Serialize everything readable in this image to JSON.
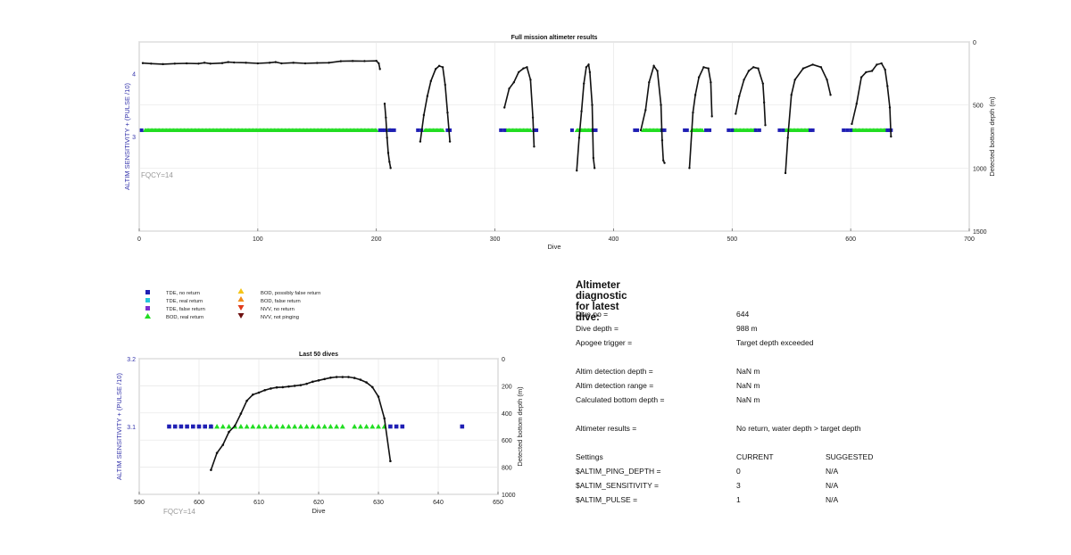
{
  "colors": {
    "tde_no_return": "#1f1fb4",
    "tde_real_return": "#26c6da",
    "tde_false_return": "#7b2fd1",
    "bod_real_return": "#22dd22",
    "bod_possibly_false": "#f5c518",
    "bod_false_return": "#f08c1a",
    "nvv_no_return": "#e03a1a",
    "nvv_not_pinging": "#6e1010",
    "depth_line": "#111111",
    "left_axis_label": "#3333aa",
    "fqcy_text": "#999999"
  },
  "chart_data": [
    {
      "type": "scatter",
      "title": "Full mission altimeter results",
      "xlabel": "Dive",
      "ylabel_left": "ALTIM SENSITIVITY + (PULSE /10)",
      "ylabel_right": "Detected bottom depth (m)",
      "xlim": [
        0,
        700
      ],
      "ylim_left": [
        1.5,
        4.5
      ],
      "ylim_right": [
        1500,
        0
      ],
      "x_ticks": [
        "0",
        "100",
        "200",
        "300",
        "400",
        "500",
        "600",
        "700"
      ],
      "y_left_ticks": [
        "4",
        "3"
      ],
      "y_right_ticks": [
        "0",
        "500",
        "1000",
        "1500"
      ],
      "grid": true,
      "annotation": "FQCY=14",
      "depth_segments": [
        [
          [
            3,
            168
          ],
          [
            10,
            172
          ],
          [
            20,
            176
          ],
          [
            30,
            172
          ],
          [
            40,
            170
          ],
          [
            50,
            172
          ],
          [
            55,
            165
          ],
          [
            60,
            172
          ],
          [
            70,
            168
          ],
          [
            75,
            160
          ],
          [
            80,
            163
          ],
          [
            90,
            165
          ],
          [
            100,
            170
          ],
          [
            110,
            165
          ],
          [
            115,
            160
          ],
          [
            120,
            170
          ],
          [
            130,
            165
          ],
          [
            140,
            170
          ],
          [
            150,
            167
          ],
          [
            160,
            165
          ],
          [
            170,
            153
          ],
          [
            180,
            151
          ],
          [
            190,
            152
          ],
          [
            200,
            150
          ],
          [
            202,
            170
          ],
          [
            203,
            215
          ]
        ],
        [
          [
            207,
            490
          ],
          [
            208,
            600
          ],
          [
            209,
            760
          ],
          [
            210,
            880
          ],
          [
            211,
            950
          ],
          [
            212,
            1000
          ]
        ],
        [
          [
            237,
            790
          ],
          [
            240,
            580
          ],
          [
            243,
            430
          ],
          [
            246,
            310
          ],
          [
            250,
            215
          ],
          [
            253,
            190
          ],
          [
            256,
            200
          ],
          [
            258,
            340
          ],
          [
            260,
            560
          ],
          [
            262,
            790
          ]
        ],
        [
          [
            308,
            520
          ],
          [
            312,
            370
          ],
          [
            316,
            320
          ],
          [
            320,
            240
          ],
          [
            324,
            210
          ],
          [
            327,
            200
          ],
          [
            330,
            300
          ],
          [
            332,
            600
          ],
          [
            333,
            830
          ]
        ],
        [
          [
            369,
            1020
          ],
          [
            371,
            760
          ],
          [
            373,
            550
          ],
          [
            375,
            330
          ],
          [
            377,
            200
          ],
          [
            379,
            180
          ],
          [
            380,
            240
          ],
          [
            382,
            500
          ],
          [
            383,
            920
          ],
          [
            384,
            1000
          ]
        ],
        [
          [
            423,
            700
          ],
          [
            427,
            540
          ],
          [
            430,
            320
          ],
          [
            434,
            190
          ],
          [
            437,
            230
          ],
          [
            440,
            500
          ],
          [
            441,
            780
          ],
          [
            442,
            940
          ],
          [
            443,
            960
          ]
        ],
        [
          [
            464,
            1000
          ],
          [
            467,
            560
          ],
          [
            469,
            420
          ],
          [
            472,
            280
          ],
          [
            476,
            200
          ],
          [
            480,
            210
          ],
          [
            482,
            320
          ],
          [
            483,
            590
          ]
        ],
        [
          [
            503,
            570
          ],
          [
            506,
            430
          ],
          [
            510,
            300
          ],
          [
            514,
            230
          ],
          [
            518,
            200
          ],
          [
            522,
            210
          ],
          [
            526,
            330
          ],
          [
            527,
            480
          ],
          [
            528,
            660
          ]
        ],
        [
          [
            545,
            1040
          ],
          [
            547,
            760
          ],
          [
            550,
            420
          ],
          [
            553,
            300
          ],
          [
            560,
            210
          ],
          [
            568,
            180
          ],
          [
            575,
            200
          ],
          [
            580,
            300
          ],
          [
            583,
            420
          ]
        ],
        [
          [
            601,
            650
          ],
          [
            605,
            490
          ],
          [
            609,
            280
          ],
          [
            613,
            240
          ],
          [
            618,
            230
          ],
          [
            622,
            180
          ],
          [
            626,
            170
          ],
          [
            629,
            220
          ],
          [
            631,
            350
          ],
          [
            633,
            520
          ],
          [
            634,
            750
          ]
        ]
      ],
      "bod_real_return_ranges": [
        [
          5,
          200
        ],
        [
          210,
          212
        ],
        [
          241,
          256
        ],
        [
          310,
          330
        ],
        [
          369,
          382
        ],
        [
          425,
          440
        ],
        [
          466,
          475
        ],
        [
          500,
          520
        ],
        [
          545,
          565
        ],
        [
          601,
          630
        ]
      ],
      "tde_no_return_points": [
        2,
        203,
        205,
        207,
        211,
        213,
        215,
        235,
        238,
        260,
        262,
        305,
        308,
        333,
        335,
        365,
        383,
        385,
        418,
        420,
        441,
        443,
        460,
        462,
        478,
        481,
        497,
        500,
        520,
        523,
        540,
        543,
        566,
        568,
        594,
        597,
        600,
        631,
        633,
        634
      ]
    },
    {
      "type": "scatter",
      "title": "Last 50 dives",
      "xlabel": "Dive",
      "ylabel_left": "ALTIM SENSITIVITY + (PULSE /10)",
      "ylabel_right": "Detected bottom depth (m)",
      "xlim": [
        590,
        650
      ],
      "ylim_left": [
        3.0,
        3.2
      ],
      "ylim_right": [
        1000,
        0
      ],
      "x_ticks": [
        "590",
        "600",
        "610",
        "620",
        "630",
        "640",
        "650"
      ],
      "y_left_ticks": [
        "3.2",
        "3.1"
      ],
      "y_right_ticks": [
        "0",
        "200",
        "400",
        "600",
        "800",
        "1000"
      ],
      "grid": true,
      "annotation": "FQCY=14",
      "depth_points": [
        [
          602,
          820
        ],
        [
          603,
          695
        ],
        [
          604,
          635
        ],
        [
          605,
          540
        ],
        [
          606,
          495
        ],
        [
          607,
          405
        ],
        [
          608,
          310
        ],
        [
          609,
          265
        ],
        [
          610,
          250
        ],
        [
          611,
          232
        ],
        [
          612,
          220
        ],
        [
          613,
          212
        ],
        [
          614,
          210
        ],
        [
          615,
          205
        ],
        [
          616,
          200
        ],
        [
          617,
          195
        ],
        [
          618,
          185
        ],
        [
          619,
          170
        ],
        [
          620,
          160
        ],
        [
          621,
          150
        ],
        [
          622,
          140
        ],
        [
          623,
          135
        ],
        [
          624,
          135
        ],
        [
          625,
          135
        ],
        [
          626,
          142
        ],
        [
          627,
          155
        ],
        [
          628,
          175
        ],
        [
          629,
          210
        ],
        [
          630,
          280
        ],
        [
          631,
          440
        ],
        [
          632,
          755
        ]
      ],
      "bod_real_return_points": [
        602,
        603,
        604,
        605,
        606,
        607,
        608,
        609,
        610,
        611,
        612,
        613,
        614,
        615,
        616,
        617,
        618,
        619,
        620,
        621,
        622,
        623,
        624,
        626,
        627,
        628,
        629,
        630,
        631
      ],
      "tde_no_return_points": [
        595,
        596,
        597,
        598,
        599,
        600,
        601,
        602,
        632,
        633,
        634,
        644
      ]
    }
  ],
  "legend": {
    "col1": [
      "TDE, no return",
      "TDE, real return",
      "TDE, false return",
      "BOD, real return"
    ],
    "col2": [
      "BOD, possibly false return",
      "BOD, false return",
      "NVV, no return",
      "NVV, not pinging"
    ]
  },
  "diagnostic": {
    "title": "Altimeter diagnostic for latest dive:",
    "dive_no_label": "Dive no =",
    "dive_no_value": "644",
    "dive_depth_label": "Dive depth =",
    "dive_depth_value": "988 m",
    "apogee_label": "Apogee trigger =",
    "apogee_value": "Target depth exceeded",
    "detection_depth_label": "Altim detection depth =",
    "detection_depth_value": "NaN m",
    "detection_range_label": "Altim detection range =",
    "detection_range_value": "NaN m",
    "bottom_depth_label": "Calculated bottom depth =",
    "bottom_depth_value": "NaN m",
    "results_label": "Altimeter results =",
    "results_value": "No return, water depth > target depth",
    "settings_label": "Settings",
    "current_header": "CURRENT",
    "suggested_header": "SUGGESTED",
    "settings": [
      {
        "name": "$ALTIM_PING_DEPTH =",
        "current": "0",
        "suggested": "N/A"
      },
      {
        "name": "$ALTIM_SENSITIVITY =",
        "current": "3",
        "suggested": "N/A"
      },
      {
        "name": "$ALTIM_PULSE =",
        "current": "1",
        "suggested": "N/A"
      }
    ]
  }
}
